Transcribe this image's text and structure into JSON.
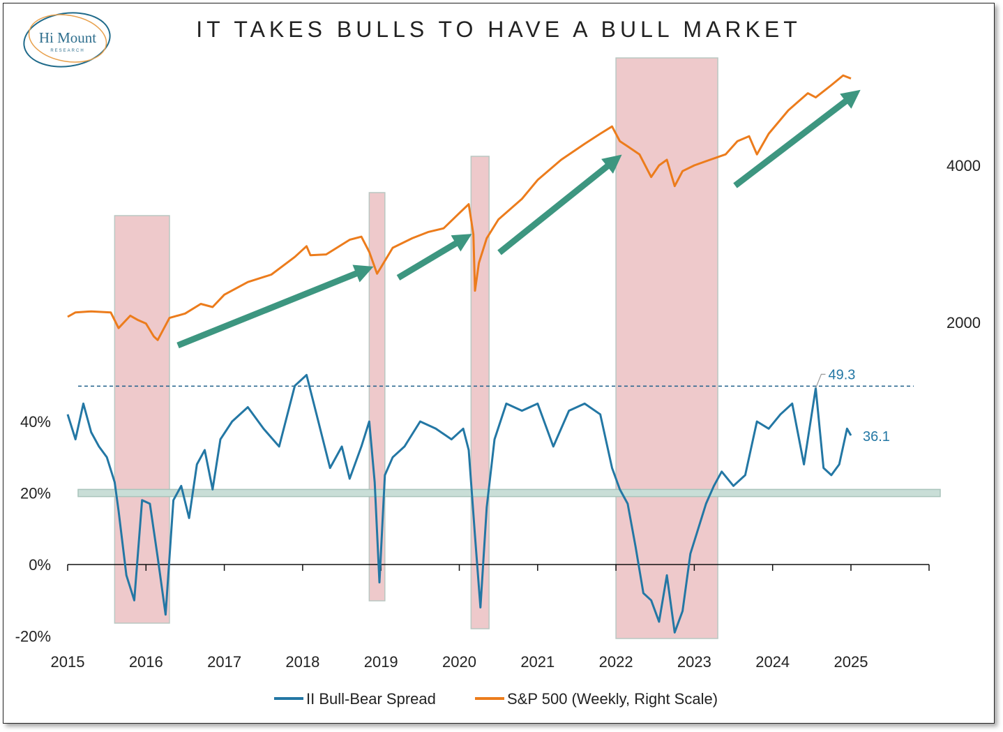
{
  "logo": {
    "name": "Hi Mount",
    "sub": "RESEARCH"
  },
  "chart_data": {
    "type": "line",
    "title": "IT TAKES BULLS TO HAVE A BULL MARKET",
    "x_ticks": [
      "2015",
      "2016",
      "2017",
      "2018",
      "2019",
      "2020",
      "2021",
      "2022",
      "2023",
      "2024",
      "2025"
    ],
    "left_axis": {
      "ticks": [
        "40%",
        "20%",
        "0%",
        "-20%"
      ],
      "range": [
        -20,
        60
      ]
    },
    "right_axis": {
      "ticks": [
        "4000",
        "2000"
      ],
      "scale": "log"
    },
    "colors": {
      "spread": "#2377a4",
      "sp500": "#ec7c1c",
      "arrow": "#3d9680",
      "band": "#c9ded7",
      "shade": "#e8b7ba"
    },
    "legend": {
      "position": "bottom",
      "entries": [
        "II Bull-Bear Spread",
        "S&P 500 (Weekly, Right Scale)"
      ]
    },
    "annotations": {
      "max_label": "49.3",
      "last_label": "36.1",
      "max_value": 49.3,
      "last_value": 36.1
    },
    "reference_line": 49.3,
    "threshold_band": [
      19,
      21
    ],
    "shaded_periods": [
      [
        2015.6,
        2016.3
      ],
      [
        2018.85,
        2019.05
      ],
      [
        2020.15,
        2020.38
      ],
      [
        2022.0,
        2023.3
      ]
    ],
    "series": [
      {
        "name": "II Bull-Bear Spread",
        "axis": "left",
        "x": [
          2015.0,
          2015.1,
          2015.2,
          2015.3,
          2015.4,
          2015.5,
          2015.6,
          2015.65,
          2015.75,
          2015.85,
          2015.95,
          2016.05,
          2016.15,
          2016.25,
          2016.35,
          2016.45,
          2016.55,
          2016.65,
          2016.75,
          2016.85,
          2016.95,
          2017.1,
          2017.3,
          2017.5,
          2017.7,
          2017.9,
          2018.05,
          2018.2,
          2018.35,
          2018.5,
          2018.6,
          2018.75,
          2018.85,
          2018.92,
          2018.98,
          2019.05,
          2019.15,
          2019.3,
          2019.5,
          2019.7,
          2019.9,
          2020.05,
          2020.12,
          2020.2,
          2020.27,
          2020.35,
          2020.45,
          2020.6,
          2020.8,
          2021.0,
          2021.2,
          2021.4,
          2021.6,
          2021.8,
          2021.95,
          2022.05,
          2022.15,
          2022.25,
          2022.35,
          2022.45,
          2022.55,
          2022.65,
          2022.75,
          2022.85,
          2022.95,
          2023.05,
          2023.15,
          2023.25,
          2023.35,
          2023.5,
          2023.65,
          2023.8,
          2023.95,
          2024.1,
          2024.25,
          2024.4,
          2024.55,
          2024.65,
          2024.75,
          2024.85,
          2024.95,
          2025.0
        ],
        "values": [
          42,
          35,
          45,
          37,
          33,
          30,
          23,
          15,
          -3,
          -10,
          18,
          17,
          2,
          -14,
          18,
          22,
          13,
          28,
          32,
          21,
          35,
          40,
          44,
          38,
          33,
          50,
          53,
          40,
          27,
          33,
          24,
          33,
          40,
          23,
          -5,
          25,
          30,
          33,
          40,
          38,
          35,
          38,
          32,
          8,
          -12,
          16,
          35,
          45,
          43,
          45,
          33,
          43,
          45,
          42,
          27,
          21,
          17,
          5,
          -8,
          -10,
          -16,
          -3,
          -19,
          -13,
          3,
          10,
          17,
          22,
          26,
          22,
          25,
          40,
          38,
          42,
          45,
          28,
          49.3,
          27,
          25,
          28,
          38,
          36.1
        ]
      },
      {
        "name": "S&P 500 (Weekly, Right Scale)",
        "axis": "right",
        "x": [
          2015.0,
          2015.1,
          2015.3,
          2015.55,
          2015.65,
          2015.8,
          2015.9,
          2016.0,
          2016.1,
          2016.15,
          2016.3,
          2016.5,
          2016.7,
          2016.85,
          2017.0,
          2017.3,
          2017.6,
          2017.9,
          2018.05,
          2018.1,
          2018.3,
          2018.6,
          2018.75,
          2018.85,
          2018.95,
          2019.0,
          2019.15,
          2019.4,
          2019.6,
          2019.8,
          2020.0,
          2020.12,
          2020.18,
          2020.2,
          2020.25,
          2020.35,
          2020.5,
          2020.8,
          2021.0,
          2021.3,
          2021.6,
          2021.8,
          2021.95,
          2022.05,
          2022.15,
          2022.3,
          2022.45,
          2022.55,
          2022.65,
          2022.75,
          2022.85,
          2023.0,
          2023.2,
          2023.4,
          2023.55,
          2023.7,
          2023.8,
          2023.95,
          2024.2,
          2024.45,
          2024.55,
          2024.75,
          2024.9,
          2025.0
        ],
        "values": [
          2050,
          2090,
          2100,
          2090,
          1950,
          2060,
          2020,
          1990,
          1880,
          1850,
          2040,
          2080,
          2170,
          2140,
          2260,
          2390,
          2470,
          2670,
          2800,
          2690,
          2700,
          2880,
          2920,
          2730,
          2480,
          2550,
          2780,
          2900,
          2980,
          3030,
          3240,
          3370,
          2950,
          2300,
          2600,
          2900,
          3150,
          3450,
          3750,
          4100,
          4400,
          4600,
          4750,
          4450,
          4350,
          4200,
          3800,
          4000,
          4100,
          3650,
          3900,
          4000,
          4100,
          4200,
          4450,
          4550,
          4200,
          4600,
          5100,
          5500,
          5400,
          5700,
          5950,
          5870
        ]
      }
    ]
  }
}
